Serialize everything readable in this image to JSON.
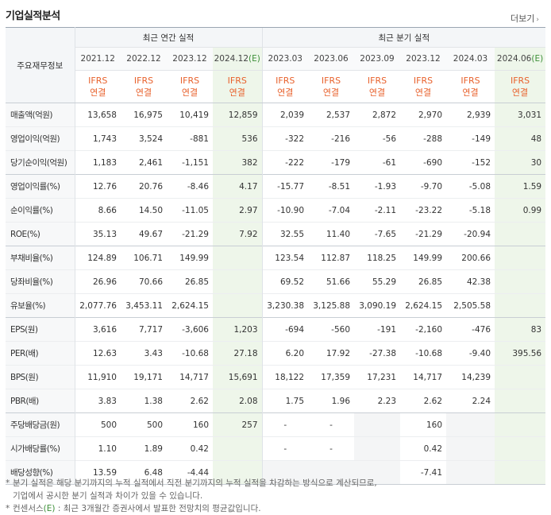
{
  "header": {
    "title": "기업실적분석",
    "more_label": "더보기"
  },
  "table": {
    "corner_label": "주요재무정보",
    "group_annual": "최근 연간 실적",
    "group_quarter": "최근 분기 실적",
    "est_mark": "(E)",
    "periods": [
      "2021.12",
      "2022.12",
      "2023.12",
      "2024.12",
      "2023.03",
      "2023.06",
      "2023.09",
      "2023.12",
      "2024.03",
      "2024.06"
    ],
    "ifrs_line1": "IFRS",
    "ifrs_line2": "연결",
    "rows": [
      {
        "label": "매출액(억원)",
        "values": [
          "13,658",
          "16,975",
          "10,419",
          "12,859",
          "2,039",
          "2,537",
          "2,872",
          "2,970",
          "2,939",
          "3,031"
        ]
      },
      {
        "label": "영업이익(억원)",
        "values": [
          "1,743",
          "3,524",
          "-881",
          "536",
          "-322",
          "-216",
          "-56",
          "-288",
          "-149",
          "48"
        ]
      },
      {
        "label": "당기순이익(억원)",
        "values": [
          "1,183",
          "2,461",
          "-1,151",
          "382",
          "-222",
          "-179",
          "-61",
          "-690",
          "-152",
          "30"
        ]
      },
      {
        "label": "영업이익률(%)",
        "values": [
          "12.76",
          "20.76",
          "-8.46",
          "4.17",
          "-15.77",
          "-8.51",
          "-1.93",
          "-9.70",
          "-5.08",
          "1.59"
        ]
      },
      {
        "label": "순이익률(%)",
        "values": [
          "8.66",
          "14.50",
          "-11.05",
          "2.97",
          "-10.90",
          "-7.04",
          "-2.11",
          "-23.22",
          "-5.18",
          "0.99"
        ]
      },
      {
        "label": "ROE(%)",
        "values": [
          "35.13",
          "49.67",
          "-21.29",
          "7.92",
          "32.55",
          "11.40",
          "-7.65",
          "-21.29",
          "-20.94",
          ""
        ]
      },
      {
        "label": "부채비율(%)",
        "values": [
          "124.89",
          "106.71",
          "149.99",
          "",
          "123.54",
          "112.87",
          "118.25",
          "149.99",
          "200.66",
          ""
        ]
      },
      {
        "label": "당좌비율(%)",
        "values": [
          "26.96",
          "70.66",
          "26.85",
          "",
          "69.52",
          "51.66",
          "55.29",
          "26.85",
          "42.38",
          ""
        ]
      },
      {
        "label": "유보율(%)",
        "values": [
          "2,077.76",
          "3,453.11",
          "2,624.15",
          "",
          "3,230.38",
          "3,125.88",
          "3,090.19",
          "2,624.15",
          "2,505.58",
          ""
        ]
      },
      {
        "label": "EPS(원)",
        "values": [
          "3,616",
          "7,717",
          "-3,606",
          "1,203",
          "-694",
          "-560",
          "-191",
          "-2,160",
          "-476",
          "83"
        ]
      },
      {
        "label": "PER(배)",
        "values": [
          "12.63",
          "3.43",
          "-10.68",
          "27.18",
          "6.20",
          "17.92",
          "-27.38",
          "-10.68",
          "-9.40",
          "395.56"
        ]
      },
      {
        "label": "BPS(원)",
        "values": [
          "11,910",
          "19,171",
          "14,717",
          "15,691",
          "18,122",
          "17,359",
          "17,231",
          "14,717",
          "14,239",
          ""
        ]
      },
      {
        "label": "PBR(배)",
        "values": [
          "3.83",
          "1.38",
          "2.62",
          "2.08",
          "1.75",
          "1.96",
          "2.23",
          "2.62",
          "2.24",
          ""
        ]
      },
      {
        "label": "주당배당금(원)",
        "values": [
          "500",
          "500",
          "160",
          "257",
          "-",
          "-",
          "",
          "160",
          "",
          ""
        ]
      },
      {
        "label": "시가배당률(%)",
        "values": [
          "1.10",
          "1.89",
          "0.42",
          "",
          "-",
          "-",
          "",
          "0.42",
          "",
          ""
        ]
      },
      {
        "label": "배당성향(%)",
        "values": [
          "13.59",
          "6.48",
          "-4.44",
          "",
          "",
          "",
          "",
          "-7.41",
          "",
          ""
        ]
      }
    ]
  },
  "notes": {
    "note1_line1": "분기 실적은 해당 분기까지의 누적 실적에서 직전 분기까지의 누적 실적을 차감하는 방식으로 계산되므로,",
    "note1_line2": "기업에서 공시한 분기 실적과 차이가 있을 수 있습니다.",
    "note2_prefix": "컨센서스",
    "note2_mark": "(E)",
    "note2_text": ": 최근 3개월간 증권사에서 발표한 전망치의 평균값입니다.",
    "bullet": "*"
  },
  "colors": {
    "ifrs": "#e8622d",
    "negative": "#e0332d",
    "estimate_bg": "#eef6ea",
    "estimate_mark": "#3c8f37"
  }
}
